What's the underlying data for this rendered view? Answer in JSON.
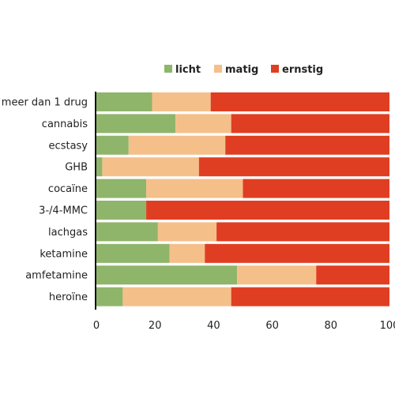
{
  "chart_data": {
    "type": "bar",
    "orientation": "horizontal",
    "stacked": true,
    "title": "",
    "xlabel": "",
    "ylabel": "",
    "xlim": [
      0,
      100
    ],
    "x_ticks": [
      0,
      20,
      40,
      60,
      80,
      100
    ],
    "grid": false,
    "legend_position": "top",
    "categories": [
      "meer dan 1 drug",
      "cannabis",
      "ecstasy",
      "GHB",
      "cocaïne",
      "3-/4-MMC",
      "lachgas",
      "ketamine",
      "amfetamine",
      "heroïne"
    ],
    "series": [
      {
        "name": "licht",
        "color": "#8fb56b",
        "values": [
          19,
          27,
          11,
          2,
          17,
          17,
          21,
          25,
          48,
          9
        ]
      },
      {
        "name": "matig",
        "color": "#f5bf8a",
        "values": [
          20,
          19,
          33,
          33,
          33,
          0,
          20,
          12,
          27,
          37
        ]
      },
      {
        "name": "ernstig",
        "color": "#e03e22",
        "values": [
          61,
          54,
          56,
          65,
          50,
          83,
          59,
          63,
          25,
          54
        ]
      }
    ]
  }
}
